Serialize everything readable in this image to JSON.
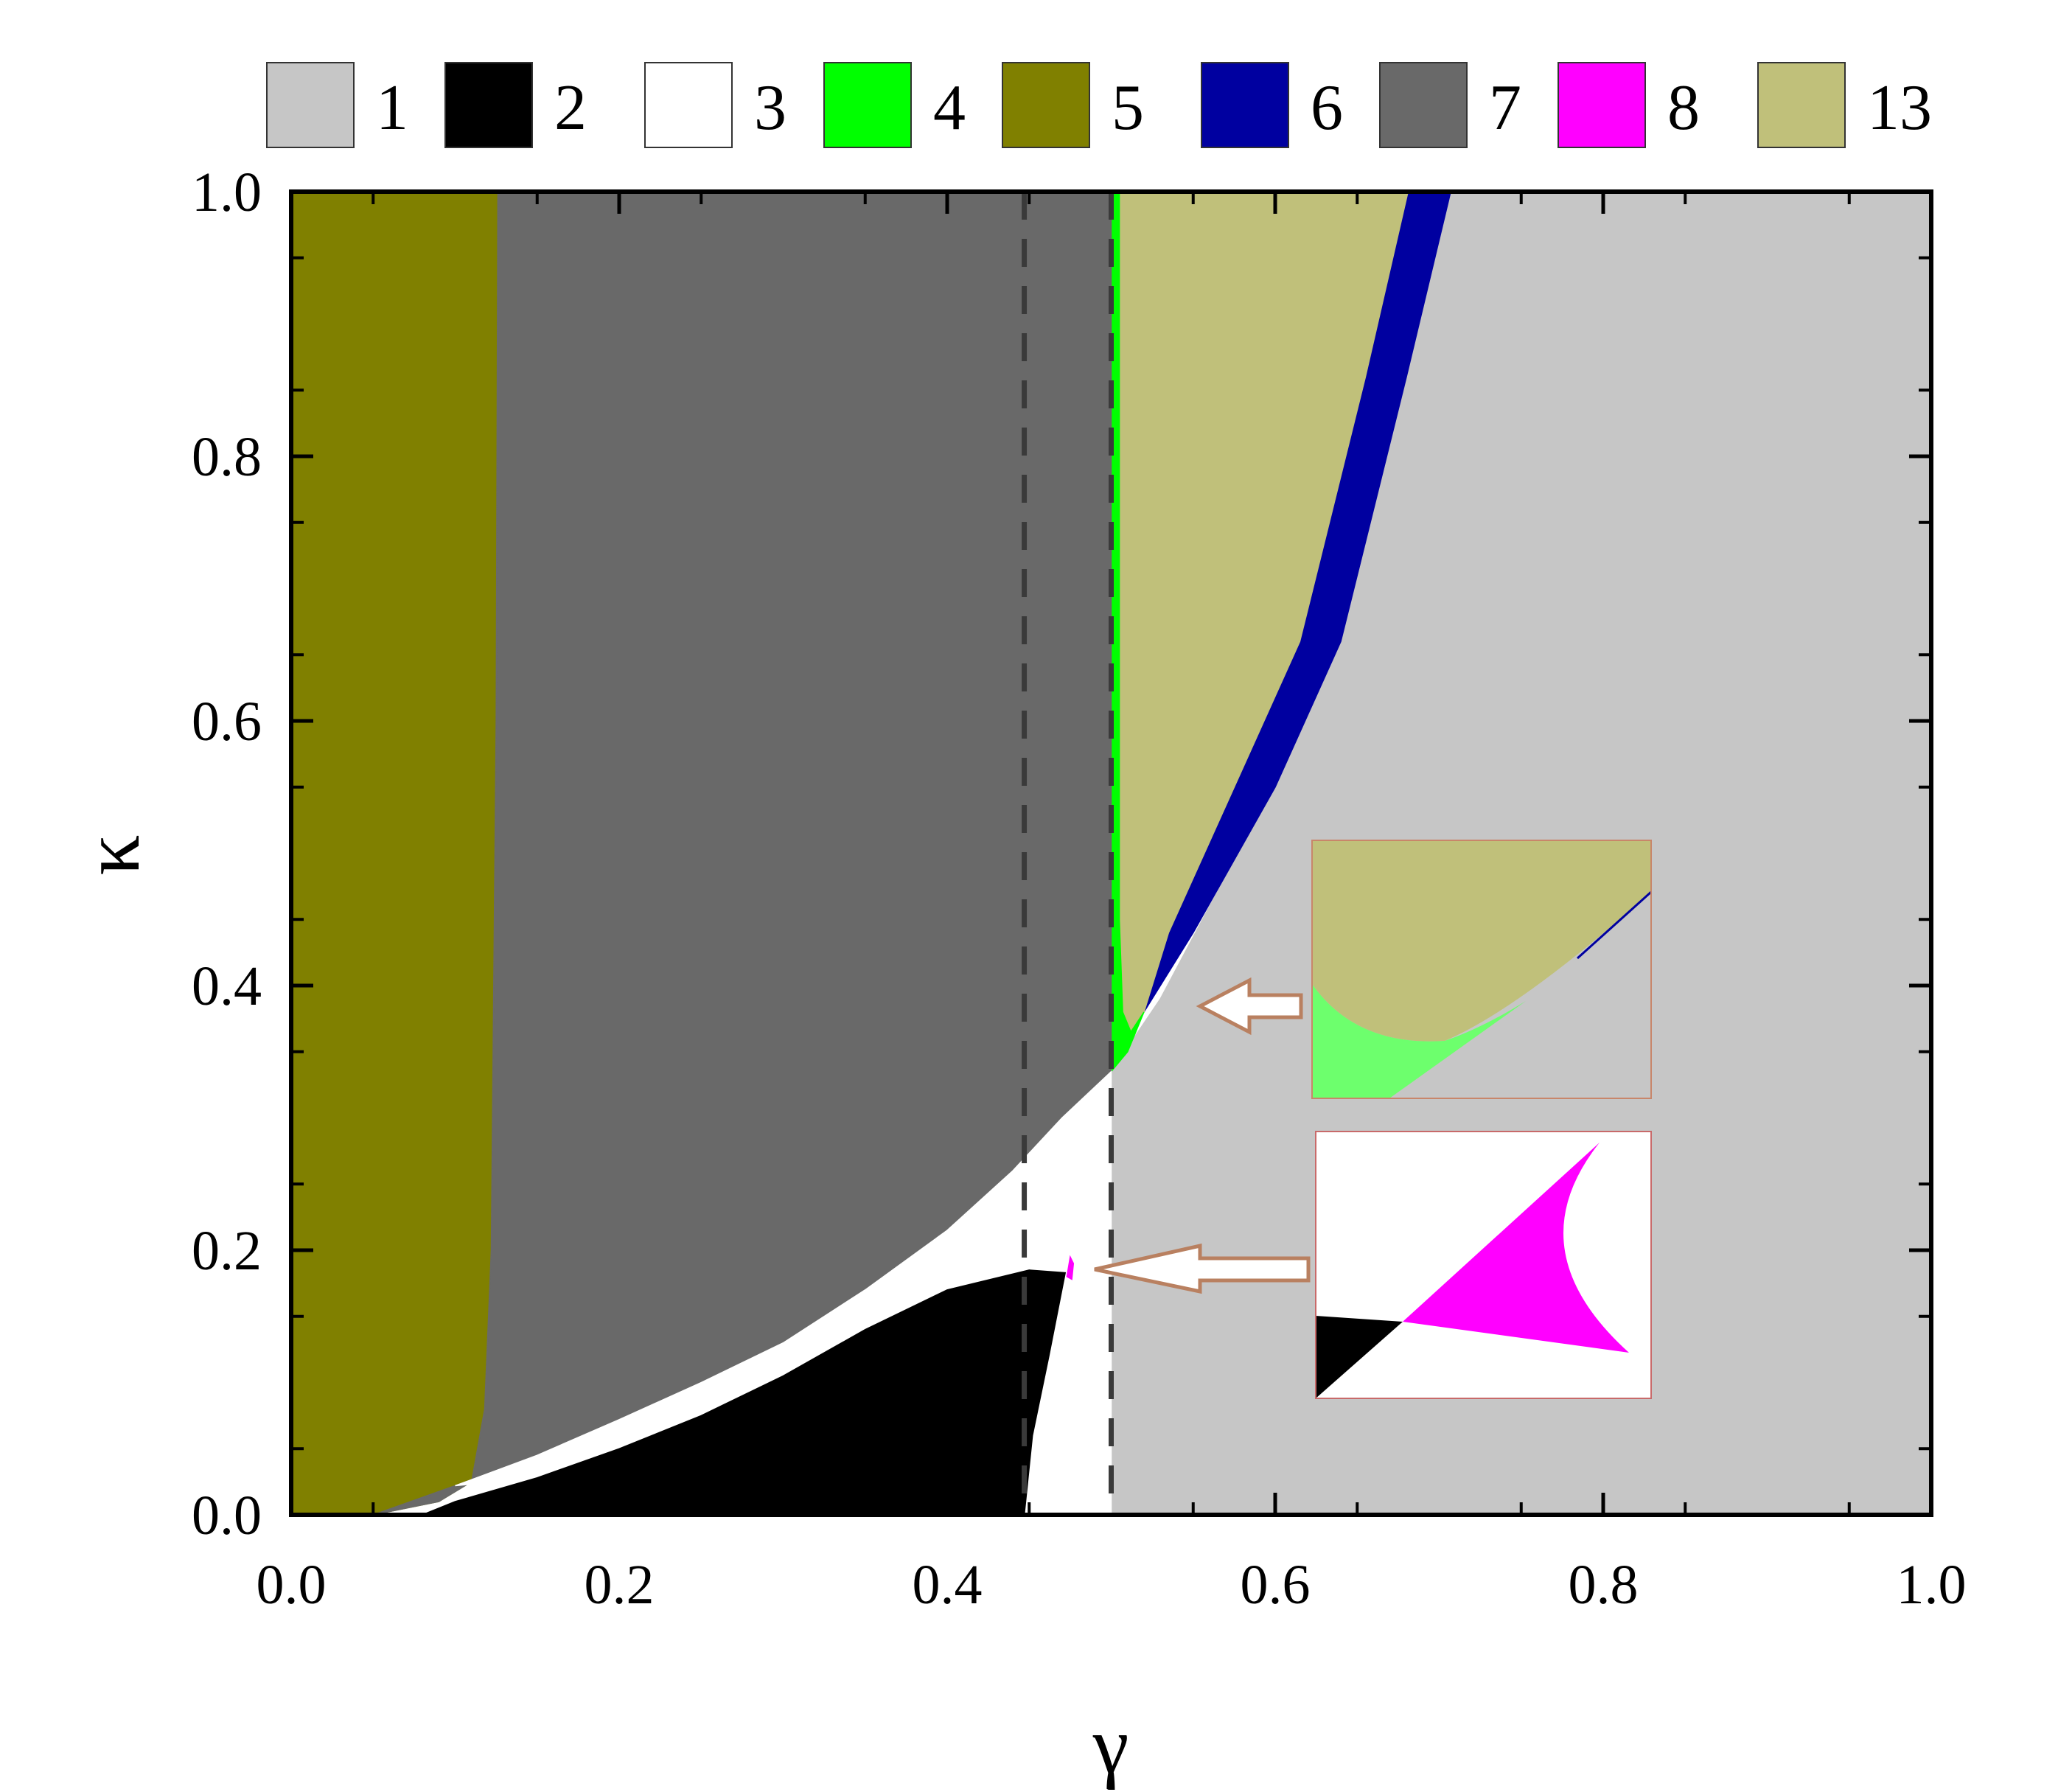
{
  "chart_data": {
    "type": "area",
    "xlabel": "γ",
    "ylabel": "κ",
    "xlim": [
      0.0,
      1.0
    ],
    "ylim": [
      0.0,
      1.0
    ],
    "x_ticks": [
      "0.0",
      "0.2",
      "0.4",
      "0.6",
      "0.8",
      "1.0"
    ],
    "y_ticks": [
      "0.0",
      "0.2",
      "0.4",
      "0.6",
      "0.8",
      "1.0"
    ],
    "grid": false,
    "legend_position": "top",
    "legend": [
      {
        "label": "1",
        "color": "#c6c6c6"
      },
      {
        "label": "2",
        "color": "#000000"
      },
      {
        "label": "3",
        "color": "#ffffff"
      },
      {
        "label": "4",
        "color": "#00ff00"
      },
      {
        "label": "5",
        "color": "#808000"
      },
      {
        "label": "6",
        "color": "#0000a0"
      },
      {
        "label": "7",
        "color": "#696969"
      },
      {
        "label": "8",
        "color": "#ff00ff"
      },
      {
        "label": "13",
        "color": "#c0c07a"
      }
    ],
    "vertical_dashed_lines_x": [
      0.447,
      0.5
    ],
    "regions": [
      {
        "label": "1",
        "polygon": [
          [
            0.5,
            0.0
          ],
          [
            1.0,
            0.0
          ],
          [
            1.0,
            1.0
          ],
          [
            0.707,
            1.0
          ],
          [
            0.68,
            0.86
          ],
          [
            0.64,
            0.66
          ],
          [
            0.6,
            0.55
          ],
          [
            0.56,
            0.46
          ],
          [
            0.53,
            0.39
          ],
          [
            0.5,
            0.335
          ],
          [
            0.5,
            0.0
          ]
        ]
      },
      {
        "label": "6",
        "polygon": [
          [
            0.52,
            0.38
          ],
          [
            0.55,
            0.44
          ],
          [
            0.6,
            0.55
          ],
          [
            0.64,
            0.66
          ],
          [
            0.68,
            0.86
          ],
          [
            0.707,
            1.0
          ],
          [
            0.681,
            1.0
          ],
          [
            0.655,
            0.86
          ],
          [
            0.615,
            0.66
          ],
          [
            0.575,
            0.55
          ],
          [
            0.535,
            0.44
          ],
          [
            0.52,
            0.38
          ]
        ]
      },
      {
        "label": "13",
        "polygon": [
          [
            0.505,
            1.0
          ],
          [
            0.681,
            1.0
          ],
          [
            0.655,
            0.86
          ],
          [
            0.615,
            0.66
          ],
          [
            0.575,
            0.55
          ],
          [
            0.535,
            0.44
          ],
          [
            0.52,
            0.38
          ],
          [
            0.512,
            0.365
          ],
          [
            0.507,
            0.38
          ],
          [
            0.505,
            0.45
          ],
          [
            0.505,
            1.0
          ]
        ]
      },
      {
        "label": "4",
        "polygon": [
          [
            0.5,
            1.0
          ],
          [
            0.505,
            1.0
          ],
          [
            0.505,
            0.45
          ],
          [
            0.507,
            0.38
          ],
          [
            0.512,
            0.365
          ],
          [
            0.52,
            0.38
          ],
          [
            0.51,
            0.35
          ],
          [
            0.5,
            0.335
          ],
          [
            0.5,
            1.0
          ]
        ]
      },
      {
        "label": "5",
        "polygon": [
          [
            0.0,
            0.0
          ],
          [
            0.0,
            1.0
          ],
          [
            0.126,
            1.0
          ],
          [
            0.125,
            0.6
          ],
          [
            0.122,
            0.2
          ],
          [
            0.118,
            0.08
          ],
          [
            0.11,
            0.025
          ],
          [
            0.09,
            0.01
          ],
          [
            0.07,
            0.005
          ],
          [
            0.05,
            0.0
          ],
          [
            0.0,
            0.0
          ]
        ]
      },
      {
        "label": "7",
        "polygon": [
          [
            0.126,
            1.0
          ],
          [
            0.5,
            1.0
          ],
          [
            0.5,
            0.335
          ],
          [
            0.47,
            0.3
          ],
          [
            0.44,
            0.26
          ],
          [
            0.4,
            0.215
          ],
          [
            0.35,
            0.17
          ],
          [
            0.3,
            0.13
          ],
          [
            0.25,
            0.1
          ],
          [
            0.2,
            0.072
          ],
          [
            0.15,
            0.045
          ],
          [
            0.1,
            0.022
          ],
          [
            0.05,
            0.0
          ],
          [
            0.07,
            0.005
          ],
          [
            0.09,
            0.01
          ],
          [
            0.11,
            0.025
          ],
          [
            0.118,
            0.08
          ],
          [
            0.122,
            0.2
          ],
          [
            0.125,
            0.6
          ],
          [
            0.126,
            1.0
          ]
        ]
      },
      {
        "label": "3",
        "polygon": [
          [
            0.1,
            0.022
          ],
          [
            0.15,
            0.045
          ],
          [
            0.2,
            0.072
          ],
          [
            0.25,
            0.1
          ],
          [
            0.3,
            0.13
          ],
          [
            0.35,
            0.17
          ],
          [
            0.4,
            0.215
          ],
          [
            0.44,
            0.26
          ],
          [
            0.47,
            0.3
          ],
          [
            0.5,
            0.335
          ],
          [
            0.5,
            0.0
          ],
          [
            0.447,
            0.0
          ],
          [
            0.452,
            0.06
          ],
          [
            0.462,
            0.12
          ],
          [
            0.472,
            0.183
          ],
          [
            0.45,
            0.185
          ],
          [
            0.4,
            0.17
          ],
          [
            0.35,
            0.14
          ],
          [
            0.3,
            0.105
          ],
          [
            0.25,
            0.075
          ],
          [
            0.2,
            0.05
          ],
          [
            0.15,
            0.028
          ],
          [
            0.1,
            0.022
          ]
        ]
      },
      {
        "label": "2",
        "polygon": [
          [
            0.08,
            0.0
          ],
          [
            0.1,
            0.01
          ],
          [
            0.15,
            0.028
          ],
          [
            0.2,
            0.05
          ],
          [
            0.25,
            0.075
          ],
          [
            0.3,
            0.105
          ],
          [
            0.35,
            0.14
          ],
          [
            0.4,
            0.17
          ],
          [
            0.45,
            0.185
          ],
          [
            0.472,
            0.183
          ],
          [
            0.462,
            0.12
          ],
          [
            0.452,
            0.06
          ],
          [
            0.447,
            0.0
          ],
          [
            0.08,
            0.0
          ]
        ]
      },
      {
        "label": "8",
        "polygon": [
          [
            0.473,
            0.18
          ],
          [
            0.475,
            0.195
          ],
          [
            0.477,
            0.19
          ],
          [
            0.476,
            0.178
          ],
          [
            0.473,
            0.18
          ]
        ]
      }
    ],
    "insets": [
      {
        "name": "inset-upper",
        "points_to": [
          0.55,
          0.385
        ],
        "background": "#c6c6c6"
      },
      {
        "name": "inset-lower",
        "points_to": [
          0.485,
          0.19
        ],
        "background": "#ffffff"
      }
    ]
  }
}
